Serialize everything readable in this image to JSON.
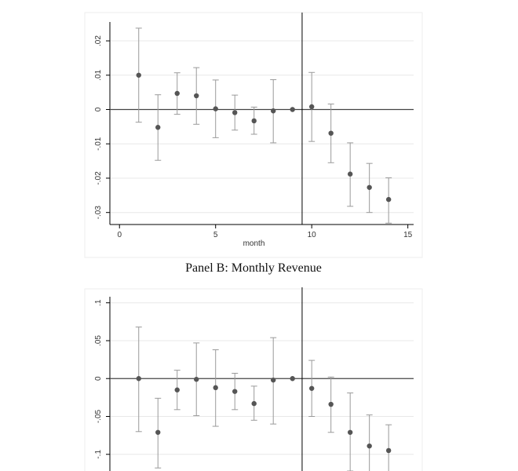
{
  "panel_b_caption": "Panel B: Monthly Revenue",
  "colors": {
    "marker": "#555555",
    "ci": "#9a9a9a",
    "grid": "#e8e8e8",
    "axis": "#000000",
    "zero_line": "#444444",
    "frame": "#eeeeee"
  },
  "chart_data": [
    {
      "type": "scatter",
      "title": "",
      "xlabel": "month",
      "ylabel": "",
      "xlim": [
        -0.5,
        15.3
      ],
      "ylim": [
        -0.0335,
        0.0255
      ],
      "xticks": [
        0,
        5,
        10,
        15
      ],
      "xtick_labels": [
        "0",
        "5",
        "10",
        "15"
      ],
      "yticks": [
        0.02,
        0.01,
        0,
        -0.01,
        -0.02,
        -0.03
      ],
      "ytick_labels": [
        ".02",
        ".01",
        "0",
        "-.01",
        "-.02",
        "-.03"
      ],
      "grid": true,
      "reference_lines": {
        "horizontal_y": 0,
        "vertical_x": 9.5
      },
      "points": [
        {
          "x": 1,
          "y": 0.01,
          "lo": -0.0037,
          "hi": 0.0237
        },
        {
          "x": 2,
          "y": -0.0052,
          "lo": -0.0148,
          "hi": 0.0043
        },
        {
          "x": 3,
          "y": 0.0047,
          "lo": -0.0014,
          "hi": 0.0107
        },
        {
          "x": 4,
          "y": 0.004,
          "lo": -0.0043,
          "hi": 0.0122
        },
        {
          "x": 5,
          "y": 0.0002,
          "lo": -0.0082,
          "hi": 0.0086
        },
        {
          "x": 6,
          "y": -0.0009,
          "lo": -0.006,
          "hi": 0.0042
        },
        {
          "x": 7,
          "y": -0.0033,
          "lo": -0.0072,
          "hi": 0.0007
        },
        {
          "x": 8,
          "y": -0.0004,
          "lo": -0.0097,
          "hi": 0.0087
        },
        {
          "x": 9,
          "y": 0,
          "lo": 0,
          "hi": 0
        },
        {
          "x": 10,
          "y": 0.0008,
          "lo": -0.0093,
          "hi": 0.0108
        },
        {
          "x": 11,
          "y": -0.0069,
          "lo": -0.0155,
          "hi": 0.0016
        },
        {
          "x": 12,
          "y": -0.0188,
          "lo": -0.0282,
          "hi": -0.0097
        },
        {
          "x": 13,
          "y": -0.0227,
          "lo": -0.03,
          "hi": -0.0157
        },
        {
          "x": 14,
          "y": -0.0262,
          "lo": -0.0331,
          "hi": -0.0199
        }
      ]
    },
    {
      "type": "scatter",
      "title": "Panel B: Monthly Revenue",
      "xlabel": "",
      "ylabel": "",
      "xlim": [
        -0.5,
        15.3
      ],
      "ylim": [
        -0.122,
        0.108
      ],
      "yticks": [
        0.1,
        0.05,
        0,
        -0.05,
        -0.1
      ],
      "ytick_labels": [
        ".1",
        ".05",
        "0",
        "-.05",
        "-.1"
      ],
      "grid": true,
      "reference_lines": {
        "horizontal_y": 0,
        "vertical_x": 9.5
      },
      "points": [
        {
          "x": 1,
          "y": 0,
          "lo": -0.07,
          "hi": 0.068
        },
        {
          "x": 2,
          "y": -0.071,
          "lo": -0.118,
          "hi": -0.026
        },
        {
          "x": 3,
          "y": -0.015,
          "lo": -0.041,
          "hi": 0.011
        },
        {
          "x": 4,
          "y": -0.001,
          "lo": -0.049,
          "hi": 0.047
        },
        {
          "x": 5,
          "y": -0.012,
          "lo": -0.063,
          "hi": 0.038
        },
        {
          "x": 6,
          "y": -0.017,
          "lo": -0.041,
          "hi": 0.007
        },
        {
          "x": 7,
          "y": -0.033,
          "lo": -0.055,
          "hi": -0.01
        },
        {
          "x": 8,
          "y": -0.002,
          "lo": -0.06,
          "hi": 0.054
        },
        {
          "x": 9,
          "y": 0,
          "lo": 0,
          "hi": 0
        },
        {
          "x": 10,
          "y": -0.013,
          "lo": -0.05,
          "hi": 0.024
        },
        {
          "x": 11,
          "y": -0.034,
          "lo": -0.071,
          "hi": 0.002
        },
        {
          "x": 12,
          "y": -0.071,
          "lo": -0.122,
          "hi": -0.019
        },
        {
          "x": 13,
          "y": -0.089,
          "lo": -0.13,
          "hi": -0.048
        },
        {
          "x": 14,
          "y": -0.095,
          "lo": -0.135,
          "hi": -0.061
        }
      ]
    }
  ]
}
